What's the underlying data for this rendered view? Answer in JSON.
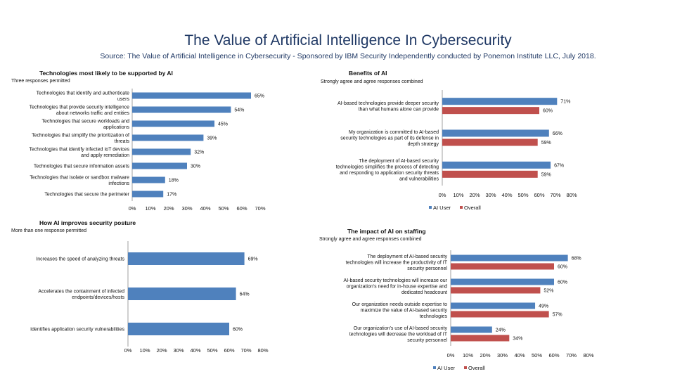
{
  "page": {
    "title": "The Value of Artificial Intelligence In Cybersecurity",
    "source": "Source: The Value of Artificial Intelligence in Cybersecurity - Sponsored by IBM Security Independently conducted by Ponemon Institute LLC, July 2018."
  },
  "colors": {
    "ai_user": "#4f81bd",
    "overall": "#c0504d",
    "axis": "#444444",
    "title": "#1f3864"
  },
  "chart_data": [
    {
      "id": "tech",
      "type": "bar",
      "orientation": "horizontal",
      "title": "Technologies most likely to be supported by AI",
      "subtitle": "Three responses permitted",
      "categories": [
        [
          "Technologies that identify and authenticate",
          "users"
        ],
        [
          "Technologies that provide security intelligence",
          "about networks traffic and entities"
        ],
        [
          "Technologies that secure workloads and",
          "applications"
        ],
        [
          "Technologies that simplify the prioritization of",
          "threats"
        ],
        [
          "Technologies that identify infected IoT devices",
          "and apply remediation"
        ],
        [
          "Technologies that secure information assets"
        ],
        [
          "Technologies that isolate or sandbox malware",
          "infections"
        ],
        [
          "Technologies that secure the perimeter"
        ]
      ],
      "series": [
        {
          "name": "",
          "values": [
            65,
            54,
            45,
            39,
            32,
            30,
            18,
            17
          ]
        }
      ],
      "xlim": [
        0,
        70
      ],
      "ticks": [
        "0%",
        "10%",
        "20%",
        "30%",
        "40%",
        "50%",
        "60%",
        "70%"
      ],
      "legend": []
    },
    {
      "id": "benefits",
      "type": "bar",
      "orientation": "horizontal",
      "title": "Benefits of AI",
      "subtitle": "Strongly agree and agree responses combined",
      "categories": [
        [
          "AI-based technologies provide deeper security",
          "than what humans alone can provide"
        ],
        [
          "My organization is committed to AI-based",
          "security technologies as part of its defense in",
          "depth strategy"
        ],
        [
          "The deployment of AI-based security",
          "technologies simplifies the process of detecting",
          "and responding to application security threats",
          "and vulnerabilities"
        ]
      ],
      "series": [
        {
          "name": "AI User",
          "values": [
            71,
            66,
            67
          ]
        },
        {
          "name": "Overall",
          "values": [
            60,
            59,
            59
          ]
        }
      ],
      "xlim": [
        0,
        80
      ],
      "ticks": [
        "0%",
        "10%",
        "20%",
        "30%",
        "40%",
        "50%",
        "60%",
        "70%",
        "80%"
      ],
      "legend": [
        "AI User",
        "Overall"
      ]
    },
    {
      "id": "posture",
      "type": "bar",
      "orientation": "horizontal",
      "title": "How AI improves security posture",
      "subtitle": "More than one response permitted",
      "categories": [
        [
          "Increases the speed of analyzing threats"
        ],
        [
          "Accelerates the containment of infected",
          "endpoints/devices/hosts"
        ],
        [
          "Identifies application security vulnerabilities"
        ]
      ],
      "series": [
        {
          "name": "",
          "values": [
            69,
            64,
            60
          ]
        }
      ],
      "xlim": [
        0,
        80
      ],
      "ticks": [
        "0%",
        "10%",
        "20%",
        "30%",
        "40%",
        "50%",
        "60%",
        "70%",
        "80%"
      ],
      "legend": []
    },
    {
      "id": "staffing",
      "type": "bar",
      "orientation": "horizontal",
      "title": "The impact of AI on staffing",
      "subtitle": "Strongly agree and agree responses combined",
      "categories": [
        [
          "The deployment of AI-based security",
          "technologies will increase the productivity of IT",
          "security personnel"
        ],
        [
          "AI-based security technologies will increase our",
          "organization's need for in-house expertise and",
          "dedicated headcount"
        ],
        [
          "Our organization needs outside expertise to",
          "maximize the value of AI-based security",
          "technologies"
        ],
        [
          "Our organization's use of AI-based security",
          "technologies will decrease the workload of IT",
          "security personnel"
        ]
      ],
      "series": [
        {
          "name": "AI User",
          "values": [
            68,
            60,
            49,
            24
          ]
        },
        {
          "name": "Overall",
          "values": [
            60,
            52,
            57,
            34
          ]
        }
      ],
      "xlim": [
        0,
        80
      ],
      "ticks": [
        "0%",
        "10%",
        "20%",
        "30%",
        "40%",
        "50%",
        "60%",
        "70%",
        "80%"
      ],
      "legend": [
        "AI User",
        "Overall"
      ]
    }
  ]
}
